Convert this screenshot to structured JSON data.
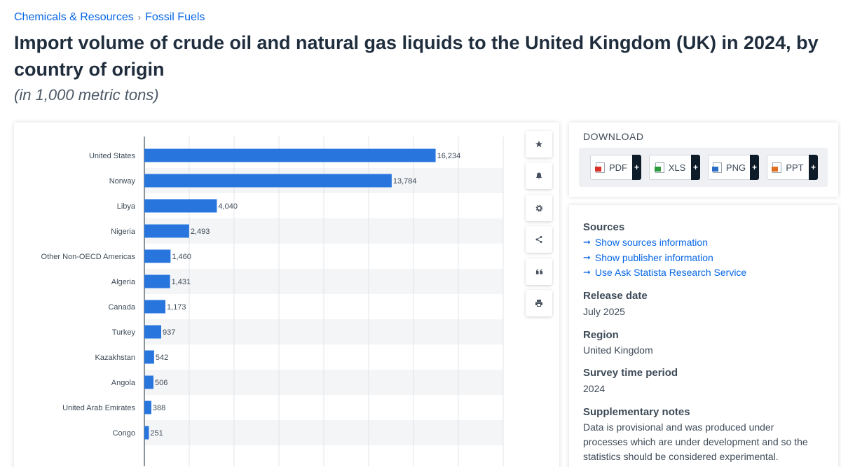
{
  "breadcrumb": {
    "first": "Chemicals & Resources",
    "separator": "›",
    "second": "Fossil Fuels"
  },
  "header": {
    "title": "Import volume of crude oil and natural gas liquids to the United Kingdom (UK) in 2024, by country of origin",
    "subtitle": "(in 1,000 metric tons)"
  },
  "chart_data": {
    "type": "bar",
    "orientation": "horizontal",
    "title": "",
    "xlabel": "",
    "ylabel": "",
    "categories": [
      "United States",
      "Norway",
      "Libya",
      "Nigeria",
      "Other Non-OECD Americas",
      "Algeria",
      "Canada",
      "Turkey",
      "Kazakhstan",
      "Angola",
      "United Arab Emirates",
      "Congo"
    ],
    "values": [
      16234,
      13784,
      4040,
      2493,
      1460,
      1431,
      1173,
      937,
      542,
      506,
      388,
      251
    ],
    "value_labels": [
      "16,234",
      "13,784",
      "4,040",
      "2,493",
      "1,460",
      "1,431",
      "1,173",
      "937",
      "542",
      "506",
      "388",
      "251"
    ],
    "xlim": [
      0,
      20000
    ],
    "grid": true,
    "bar_color": "#2876dd"
  },
  "tools": {
    "favorite_icon": "star-icon",
    "alert_icon": "bell-icon",
    "settings_icon": "gear-icon",
    "share_icon": "share-icon",
    "cite_icon": "quote-icon",
    "print_icon": "printer-icon"
  },
  "download": {
    "title": "DOWNLOAD",
    "buttons": [
      {
        "label": "PDF",
        "plus": "+",
        "icon": "pdf-icon",
        "color": "#d93025"
      },
      {
        "label": "XLS",
        "plus": "+",
        "icon": "xls-icon",
        "color": "#2e9a3e"
      },
      {
        "label": "PNG",
        "plus": "+",
        "icon": "png-icon",
        "color": "#2b6cc4"
      },
      {
        "label": "PPT",
        "plus": "+",
        "icon": "ppt-icon",
        "color": "#e07020"
      }
    ]
  },
  "info": {
    "sources_label": "Sources",
    "links": [
      "Show sources information",
      "Show publisher information",
      "Use Ask Statista Research Service"
    ],
    "release_label": "Release date",
    "release_value": "July 2025",
    "region_label": "Region",
    "region_value": "United Kingdom",
    "period_label": "Survey time period",
    "period_value": "2024",
    "notes_label": "Supplementary notes",
    "notes_line1": "Data is provisional and was produced under",
    "notes_line2": "processes which are under development and so the",
    "notes_line3": "statistics should be considered experimental."
  }
}
